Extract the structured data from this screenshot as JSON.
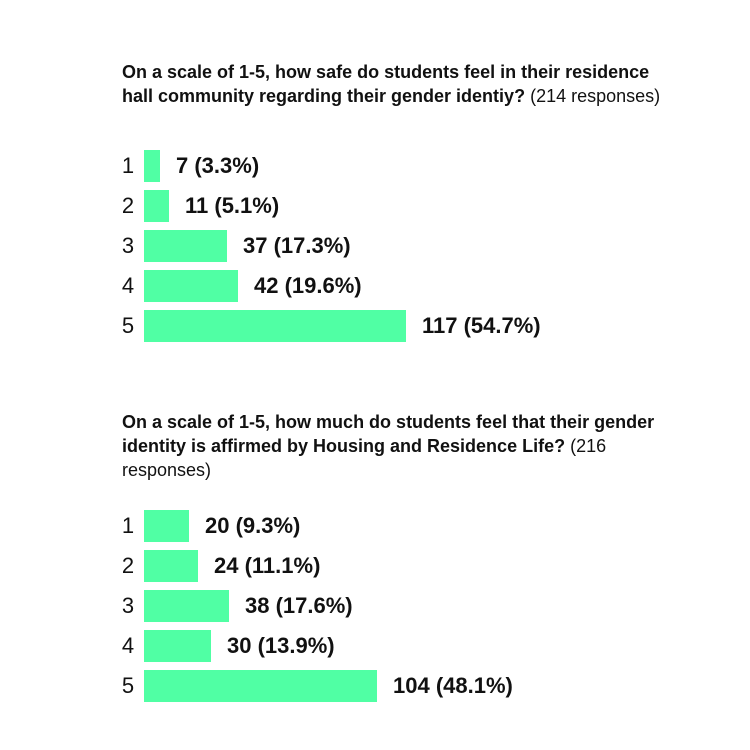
{
  "chart_data": [
    {
      "type": "bar",
      "orientation": "horizontal",
      "title": "On a scale of 1-5, how safe do students feel in their residence hall community regarding their gender identiy?",
      "subtitle": "(214 responses)",
      "categories": [
        "1",
        "2",
        "3",
        "4",
        "5"
      ],
      "values": [
        7,
        11,
        37,
        42,
        117
      ],
      "labels": [
        "7 (3.3%)",
        "11 (5.1%)",
        "37 (17.3%)",
        "42 (19.6%)",
        "117 (54.7%)"
      ],
      "bar_color": "#50ffa4",
      "xlim": [
        0,
        117
      ]
    },
    {
      "type": "bar",
      "orientation": "horizontal",
      "title": "On a scale of 1-5, how much do students feel that their gender identity is affirmed by Housing and Residence Life?",
      "subtitle": "(216 responses)",
      "categories": [
        "1",
        "2",
        "3",
        "4",
        "5"
      ],
      "values": [
        20,
        24,
        38,
        30,
        104
      ],
      "labels": [
        "20 (9.3%)",
        "24 (11.1%)",
        "38 (17.6%)",
        "30 (13.9%)",
        "104 (48.1%)"
      ],
      "bar_color": "#50ffa4",
      "xlim": [
        0,
        117
      ]
    }
  ]
}
